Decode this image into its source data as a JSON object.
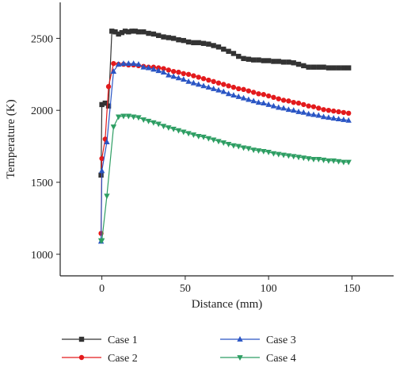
{
  "chart_data": {
    "type": "line",
    "title": "",
    "xlabel": "Distance (mm)",
    "ylabel": "Temperature (K)",
    "xlim": [
      -25,
      175
    ],
    "ylim": [
      850,
      2750
    ],
    "xticks": [
      0,
      50,
      100,
      150
    ],
    "yticks": [
      1000,
      1500,
      2000,
      2500
    ],
    "grid": false,
    "legend_position": "bottom",
    "series": [
      {
        "name": "Case 1",
        "color": "#333333",
        "marker": "square",
        "x": [
          -0.5,
          0,
          2,
          4,
          6,
          8,
          10,
          12,
          14,
          16,
          18,
          20,
          22,
          25,
          28,
          31,
          34,
          37,
          40,
          43,
          46,
          49,
          52,
          55,
          58,
          61,
          64,
          67,
          70,
          73,
          76,
          79,
          82,
          85,
          88,
          91,
          94,
          97,
          100,
          103,
          106,
          109,
          112,
          115,
          118,
          121,
          124,
          127,
          130,
          133,
          136,
          139,
          142,
          145,
          148
        ],
        "y": [
          1550,
          2040,
          2050,
          2030,
          2550,
          2545,
          2530,
          2540,
          2550,
          2545,
          2550,
          2550,
          2545,
          2545,
          2535,
          2530,
          2520,
          2510,
          2505,
          2500,
          2490,
          2485,
          2475,
          2470,
          2470,
          2465,
          2460,
          2450,
          2440,
          2425,
          2410,
          2395,
          2375,
          2360,
          2355,
          2350,
          2350,
          2345,
          2345,
          2340,
          2340,
          2335,
          2335,
          2330,
          2320,
          2310,
          2300,
          2300,
          2300,
          2300,
          2295,
          2295,
          2295,
          2295,
          2295
        ]
      },
      {
        "name": "Case 2",
        "color": "#e31a1c",
        "marker": "circle",
        "x": [
          -0.5,
          0,
          2,
          4,
          7,
          10,
          13,
          16,
          19,
          22,
          25,
          28,
          31,
          34,
          37,
          40,
          43,
          46,
          49,
          52,
          55,
          58,
          61,
          64,
          67,
          70,
          73,
          76,
          79,
          82,
          85,
          88,
          91,
          94,
          97,
          100,
          103,
          106,
          109,
          112,
          115,
          118,
          121,
          124,
          127,
          130,
          133,
          136,
          139,
          142,
          145,
          148
        ],
        "y": [
          1145,
          1665,
          1800,
          2165,
          2325,
          2320,
          2320,
          2315,
          2315,
          2310,
          2305,
          2300,
          2300,
          2295,
          2290,
          2280,
          2270,
          2265,
          2255,
          2250,
          2240,
          2230,
          2220,
          2210,
          2200,
          2190,
          2180,
          2170,
          2160,
          2150,
          2145,
          2135,
          2125,
          2115,
          2110,
          2100,
          2090,
          2080,
          2070,
          2065,
          2055,
          2050,
          2040,
          2030,
          2025,
          2015,
          2005,
          2000,
          1995,
          1990,
          1985,
          1980
        ]
      },
      {
        "name": "Case 3",
        "color": "#2a55c4",
        "marker": "triangle-up",
        "x": [
          -0.5,
          0,
          3,
          7,
          10,
          13,
          16,
          19,
          22,
          25,
          28,
          31,
          34,
          37,
          40,
          43,
          46,
          49,
          52,
          55,
          58,
          61,
          64,
          67,
          70,
          73,
          76,
          79,
          82,
          85,
          88,
          91,
          94,
          97,
          100,
          103,
          106,
          109,
          112,
          115,
          118,
          121,
          124,
          127,
          130,
          133,
          136,
          139,
          142,
          145,
          148
        ],
        "y": [
          1090,
          1580,
          1780,
          2270,
          2320,
          2325,
          2325,
          2325,
          2320,
          2300,
          2295,
          2285,
          2275,
          2265,
          2245,
          2235,
          2225,
          2215,
          2200,
          2190,
          2180,
          2170,
          2160,
          2150,
          2140,
          2130,
          2115,
          2105,
          2095,
          2085,
          2075,
          2065,
          2055,
          2050,
          2040,
          2030,
          2020,
          2015,
          2005,
          2000,
          1990,
          1985,
          1975,
          1970,
          1965,
          1955,
          1950,
          1945,
          1940,
          1935,
          1930
        ]
      },
      {
        "name": "Case 4",
        "color": "#2e9e63",
        "marker": "triangle-down",
        "x": [
          -0.5,
          0,
          3,
          7,
          10,
          13,
          16,
          19,
          22,
          25,
          28,
          31,
          34,
          37,
          40,
          43,
          46,
          49,
          52,
          55,
          58,
          61,
          64,
          67,
          70,
          73,
          76,
          79,
          82,
          85,
          88,
          91,
          94,
          97,
          100,
          103,
          106,
          109,
          112,
          115,
          118,
          121,
          124,
          127,
          130,
          133,
          136,
          139,
          142,
          145,
          148
        ],
        "y": [
          1095,
          1095,
          1405,
          1885,
          1955,
          1960,
          1960,
          1955,
          1950,
          1935,
          1925,
          1915,
          1905,
          1890,
          1880,
          1870,
          1860,
          1850,
          1840,
          1830,
          1820,
          1815,
          1805,
          1795,
          1785,
          1775,
          1765,
          1755,
          1750,
          1740,
          1735,
          1725,
          1720,
          1715,
          1710,
          1700,
          1695,
          1690,
          1685,
          1680,
          1675,
          1670,
          1665,
          1660,
          1660,
          1655,
          1650,
          1650,
          1645,
          1640,
          1640
        ]
      }
    ]
  }
}
